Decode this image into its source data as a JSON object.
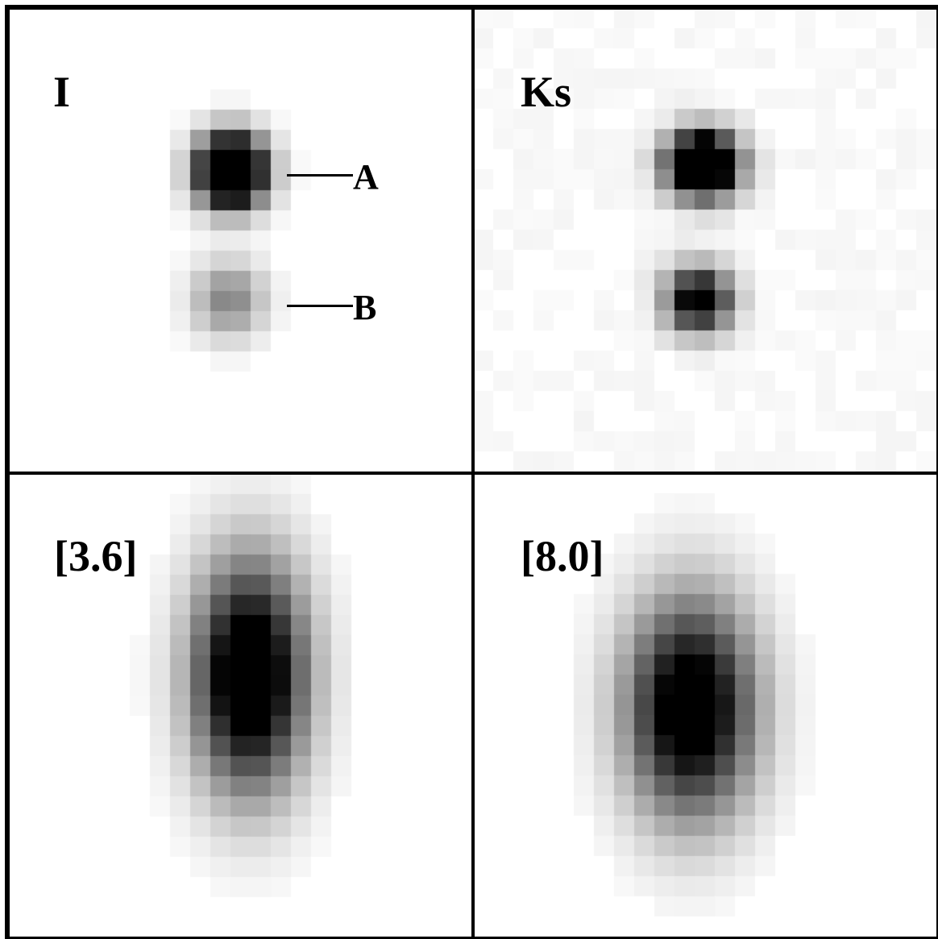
{
  "panels": [
    {
      "id": "I",
      "label": "I"
    },
    {
      "id": "Ks",
      "label": "Ks"
    },
    {
      "id": "3.6",
      "label": "[3.6]"
    },
    {
      "id": "8.0",
      "label": "[8.0]"
    }
  ],
  "markers": [
    {
      "label": "A"
    },
    {
      "label": "B"
    }
  ]
}
